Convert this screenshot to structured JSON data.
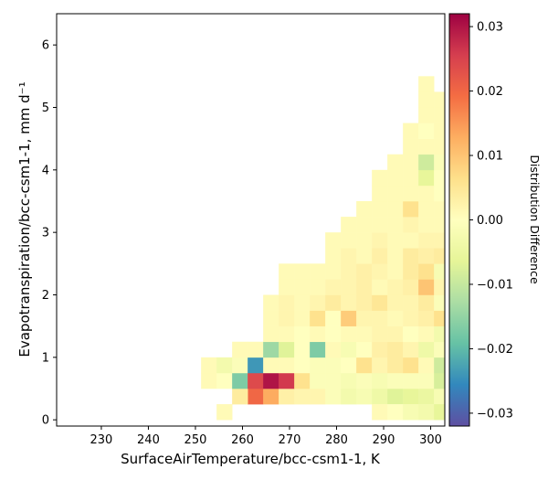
{
  "chart_data": {
    "type": "heatmap",
    "xlabel": "SurfaceAirTemperature/bcc-csm1-1,  K",
    "ylabel": "Evapotranspiration/bcc-csm1-1,  mm d⁻¹",
    "xlim": [
      220.5,
      303
    ],
    "ylim": [
      -0.1,
      6.5
    ],
    "x_ticks": [
      230,
      240,
      250,
      260,
      270,
      280,
      290,
      300
    ],
    "y_ticks": [
      0,
      1,
      2,
      3,
      4,
      5,
      6
    ],
    "bin_width_x": 3.3,
    "bin_height_y": 0.25,
    "colorbar": {
      "label": "Distribution Difference",
      "range": [
        -0.032,
        0.032
      ],
      "ticks": [
        -0.03,
        -0.02,
        -0.01,
        0.0,
        0.01,
        0.02,
        0.03
      ],
      "tick_labels": [
        "−0.03",
        "−0.02",
        "−0.01",
        "0.00",
        "0.01",
        "0.02",
        "0.03"
      ],
      "colormap": "Spectral_r"
    },
    "cells": [
      {
        "x": 254.5,
        "y": 0.0,
        "v": 0.001
      },
      {
        "x": 261.1,
        "y": 0.25,
        "v": 0.02
      },
      {
        "x": 264.4,
        "y": 0.25,
        "v": 0.013
      },
      {
        "x": 267.7,
        "y": 0.25,
        "v": 0.003
      },
      {
        "x": 257.8,
        "y": 0.25,
        "v": 0.004
      },
      {
        "x": 271.0,
        "y": 0.25,
        "v": 0.002
      },
      {
        "x": 274.3,
        "y": 0.25,
        "v": 0.002
      },
      {
        "x": 277.6,
        "y": 0.25,
        "v": -0.001
      },
      {
        "x": 280.9,
        "y": 0.25,
        "v": -0.003
      },
      {
        "x": 284.2,
        "y": 0.25,
        "v": -0.002
      },
      {
        "x": 287.5,
        "y": 0.25,
        "v": -0.004
      },
      {
        "x": 290.8,
        "y": 0.25,
        "v": -0.007
      },
      {
        "x": 294.1,
        "y": 0.25,
        "v": -0.006
      },
      {
        "x": 297.4,
        "y": 0.25,
        "v": -0.005
      },
      {
        "x": 300.7,
        "y": 0.25,
        "v": -0.002
      },
      {
        "x": 287.5,
        "y": 0.0,
        "v": 0.001
      },
      {
        "x": 290.8,
        "y": 0.0,
        "v": 0.0
      },
      {
        "x": 294.1,
        "y": 0.0,
        "v": -0.002
      },
      {
        "x": 297.4,
        "y": 0.0,
        "v": -0.003
      },
      {
        "x": 300.7,
        "y": 0.0,
        "v": -0.006
      },
      {
        "x": 251.2,
        "y": 0.5,
        "v": 0.001
      },
      {
        "x": 254.5,
        "y": 0.5,
        "v": 0.0
      },
      {
        "x": 257.8,
        "y": 0.5,
        "v": -0.017
      },
      {
        "x": 261.1,
        "y": 0.5,
        "v": 0.024
      },
      {
        "x": 264.4,
        "y": 0.5,
        "v": 0.03
      },
      {
        "x": 267.7,
        "y": 0.5,
        "v": 0.026
      },
      {
        "x": 271.0,
        "y": 0.5,
        "v": 0.006
      },
      {
        "x": 274.3,
        "y": 0.5,
        "v": -0.001
      },
      {
        "x": 277.6,
        "y": 0.5,
        "v": -0.001
      },
      {
        "x": 280.9,
        "y": 0.5,
        "v": -0.002
      },
      {
        "x": 284.2,
        "y": 0.5,
        "v": -0.001
      },
      {
        "x": 287.5,
        "y": 0.5,
        "v": -0.002
      },
      {
        "x": 290.8,
        "y": 0.5,
        "v": -0.001
      },
      {
        "x": 294.1,
        "y": 0.5,
        "v": -0.001
      },
      {
        "x": 297.4,
        "y": 0.5,
        "v": -0.001
      },
      {
        "x": 300.7,
        "y": 0.5,
        "v": -0.008
      },
      {
        "x": 251.2,
        "y": 0.75,
        "v": 0.001
      },
      {
        "x": 254.5,
        "y": 0.75,
        "v": -0.003
      },
      {
        "x": 257.8,
        "y": 0.75,
        "v": -0.001
      },
      {
        "x": 261.1,
        "y": 0.75,
        "v": -0.024
      },
      {
        "x": 264.4,
        "y": 0.75,
        "v": 0.001
      },
      {
        "x": 267.7,
        "y": 0.75,
        "v": 0.001
      },
      {
        "x": 271.0,
        "y": 0.75,
        "v": 0.0
      },
      {
        "x": 274.3,
        "y": 0.75,
        "v": -0.001
      },
      {
        "x": 277.6,
        "y": 0.75,
        "v": -0.001
      },
      {
        "x": 280.9,
        "y": 0.75,
        "v": 0.0
      },
      {
        "x": 284.2,
        "y": 0.75,
        "v": 0.006
      },
      {
        "x": 287.5,
        "y": 0.75,
        "v": 0.002
      },
      {
        "x": 290.8,
        "y": 0.75,
        "v": 0.004
      },
      {
        "x": 294.1,
        "y": 0.75,
        "v": 0.006
      },
      {
        "x": 297.4,
        "y": 0.75,
        "v": 0.001
      },
      {
        "x": 300.7,
        "y": 0.75,
        "v": -0.009
      },
      {
        "x": 257.8,
        "y": 1.0,
        "v": 0.001
      },
      {
        "x": 261.1,
        "y": 1.0,
        "v": 0.001
      },
      {
        "x": 264.4,
        "y": 1.0,
        "v": -0.014
      },
      {
        "x": 267.7,
        "y": 1.0,
        "v": -0.007
      },
      {
        "x": 271.0,
        "y": 1.0,
        "v": 0.0
      },
      {
        "x": 274.3,
        "y": 1.0,
        "v": -0.017
      },
      {
        "x": 277.6,
        "y": 1.0,
        "v": 0.001
      },
      {
        "x": 280.9,
        "y": 1.0,
        "v": -0.002
      },
      {
        "x": 284.2,
        "y": 1.0,
        "v": 0.0
      },
      {
        "x": 287.5,
        "y": 1.0,
        "v": 0.003
      },
      {
        "x": 290.8,
        "y": 1.0,
        "v": 0.004
      },
      {
        "x": 294.1,
        "y": 1.0,
        "v": 0.002
      },
      {
        "x": 297.4,
        "y": 1.0,
        "v": -0.004
      },
      {
        "x": 300.7,
        "y": 1.0,
        "v": -0.001
      },
      {
        "x": 264.4,
        "y": 1.25,
        "v": 0.001
      },
      {
        "x": 267.7,
        "y": 1.25,
        "v": 0.001
      },
      {
        "x": 271.0,
        "y": 1.25,
        "v": 0.0
      },
      {
        "x": 274.3,
        "y": 1.25,
        "v": 0.001
      },
      {
        "x": 277.6,
        "y": 1.25,
        "v": 0.0
      },
      {
        "x": 280.9,
        "y": 1.25,
        "v": 0.001
      },
      {
        "x": 284.2,
        "y": 1.25,
        "v": 0.001
      },
      {
        "x": 287.5,
        "y": 1.25,
        "v": 0.002
      },
      {
        "x": 290.8,
        "y": 1.25,
        "v": 0.002
      },
      {
        "x": 294.1,
        "y": 1.25,
        "v": 0.0
      },
      {
        "x": 297.4,
        "y": 1.25,
        "v": 0.001
      },
      {
        "x": 300.7,
        "y": 1.25,
        "v": -0.003
      },
      {
        "x": 264.4,
        "y": 1.5,
        "v": 0.001
      },
      {
        "x": 267.7,
        "y": 1.5,
        "v": 0.002
      },
      {
        "x": 271.0,
        "y": 1.5,
        "v": 0.001
      },
      {
        "x": 274.3,
        "y": 1.5,
        "v": 0.006
      },
      {
        "x": 277.6,
        "y": 1.5,
        "v": 0.0
      },
      {
        "x": 280.9,
        "y": 1.5,
        "v": 0.009
      },
      {
        "x": 284.2,
        "y": 1.5,
        "v": 0.002
      },
      {
        "x": 287.5,
        "y": 1.5,
        "v": 0.002
      },
      {
        "x": 290.8,
        "y": 1.5,
        "v": 0.001
      },
      {
        "x": 294.1,
        "y": 1.5,
        "v": 0.002
      },
      {
        "x": 297.4,
        "y": 1.5,
        "v": 0.003
      },
      {
        "x": 300.7,
        "y": 1.5,
        "v": 0.006
      },
      {
        "x": 264.4,
        "y": 1.75,
        "v": 0.001
      },
      {
        "x": 267.7,
        "y": 1.75,
        "v": 0.002
      },
      {
        "x": 271.0,
        "y": 1.75,
        "v": 0.001
      },
      {
        "x": 274.3,
        "y": 1.75,
        "v": 0.002
      },
      {
        "x": 277.6,
        "y": 1.75,
        "v": 0.004
      },
      {
        "x": 280.9,
        "y": 1.75,
        "v": 0.002
      },
      {
        "x": 284.2,
        "y": 1.75,
        "v": 0.003
      },
      {
        "x": 287.5,
        "y": 1.75,
        "v": 0.005
      },
      {
        "x": 290.8,
        "y": 1.75,
        "v": 0.002
      },
      {
        "x": 294.1,
        "y": 1.75,
        "v": 0.002
      },
      {
        "x": 297.4,
        "y": 1.75,
        "v": 0.004
      },
      {
        "x": 300.7,
        "y": 1.75,
        "v": -0.001
      },
      {
        "x": 267.7,
        "y": 2.0,
        "v": 0.001
      },
      {
        "x": 271.0,
        "y": 2.0,
        "v": 0.001
      },
      {
        "x": 274.3,
        "y": 2.0,
        "v": 0.001
      },
      {
        "x": 277.6,
        "y": 2.0,
        "v": 0.002
      },
      {
        "x": 280.9,
        "y": 2.0,
        "v": 0.002
      },
      {
        "x": 284.2,
        "y": 2.0,
        "v": 0.003
      },
      {
        "x": 287.5,
        "y": 2.0,
        "v": 0.001
      },
      {
        "x": 290.8,
        "y": 2.0,
        "v": 0.002
      },
      {
        "x": 294.1,
        "y": 2.0,
        "v": 0.003
      },
      {
        "x": 297.4,
        "y": 2.0,
        "v": 0.01
      },
      {
        "x": 300.7,
        "y": 2.0,
        "v": 0.002
      },
      {
        "x": 267.7,
        "y": 2.25,
        "v": 0.001
      },
      {
        "x": 271.0,
        "y": 2.25,
        "v": 0.001
      },
      {
        "x": 274.3,
        "y": 2.25,
        "v": 0.001
      },
      {
        "x": 277.6,
        "y": 2.25,
        "v": 0.001
      },
      {
        "x": 280.9,
        "y": 2.25,
        "v": 0.002
      },
      {
        "x": 284.2,
        "y": 2.25,
        "v": 0.003
      },
      {
        "x": 287.5,
        "y": 2.25,
        "v": 0.002
      },
      {
        "x": 290.8,
        "y": 2.25,
        "v": 0.001
      },
      {
        "x": 294.1,
        "y": 2.25,
        "v": 0.004
      },
      {
        "x": 297.4,
        "y": 2.25,
        "v": 0.006
      },
      {
        "x": 300.7,
        "y": 2.25,
        "v": -0.002
      },
      {
        "x": 277.6,
        "y": 2.5,
        "v": 0.001
      },
      {
        "x": 280.9,
        "y": 2.5,
        "v": 0.002
      },
      {
        "x": 284.2,
        "y": 2.5,
        "v": 0.001
      },
      {
        "x": 287.5,
        "y": 2.5,
        "v": 0.003
      },
      {
        "x": 290.8,
        "y": 2.5,
        "v": 0.001
      },
      {
        "x": 294.1,
        "y": 2.5,
        "v": 0.004
      },
      {
        "x": 297.4,
        "y": 2.5,
        "v": 0.003
      },
      {
        "x": 300.7,
        "y": 2.5,
        "v": 0.004
      },
      {
        "x": 277.6,
        "y": 2.75,
        "v": 0.001
      },
      {
        "x": 280.9,
        "y": 2.75,
        "v": 0.001
      },
      {
        "x": 284.2,
        "y": 2.75,
        "v": 0.001
      },
      {
        "x": 287.5,
        "y": 2.75,
        "v": 0.002
      },
      {
        "x": 290.8,
        "y": 2.75,
        "v": 0.001
      },
      {
        "x": 294.1,
        "y": 2.75,
        "v": 0.001
      },
      {
        "x": 297.4,
        "y": 2.75,
        "v": 0.002
      },
      {
        "x": 300.7,
        "y": 2.75,
        "v": 0.002
      },
      {
        "x": 280.9,
        "y": 3.0,
        "v": 0.001
      },
      {
        "x": 284.2,
        "y": 3.0,
        "v": 0.001
      },
      {
        "x": 287.5,
        "y": 3.0,
        "v": 0.001
      },
      {
        "x": 290.8,
        "y": 3.0,
        "v": 0.001
      },
      {
        "x": 294.1,
        "y": 3.0,
        "v": 0.002
      },
      {
        "x": 297.4,
        "y": 3.0,
        "v": 0.001
      },
      {
        "x": 300.7,
        "y": 3.0,
        "v": 0.001
      },
      {
        "x": 284.2,
        "y": 3.25,
        "v": 0.001
      },
      {
        "x": 287.5,
        "y": 3.25,
        "v": 0.001
      },
      {
        "x": 290.8,
        "y": 3.25,
        "v": 0.001
      },
      {
        "x": 294.1,
        "y": 3.25,
        "v": 0.006
      },
      {
        "x": 297.4,
        "y": 3.25,
        "v": 0.001
      },
      {
        "x": 300.7,
        "y": 3.25,
        "v": 0.001
      },
      {
        "x": 287.5,
        "y": 3.5,
        "v": 0.001
      },
      {
        "x": 290.8,
        "y": 3.5,
        "v": 0.001
      },
      {
        "x": 294.1,
        "y": 3.5,
        "v": 0.001
      },
      {
        "x": 297.4,
        "y": 3.5,
        "v": 0.001
      },
      {
        "x": 300.7,
        "y": 3.5,
        "v": 0.0
      },
      {
        "x": 287.5,
        "y": 3.75,
        "v": 0.001
      },
      {
        "x": 290.8,
        "y": 3.75,
        "v": 0.001
      },
      {
        "x": 294.1,
        "y": 3.75,
        "v": 0.001
      },
      {
        "x": 297.4,
        "y": 3.75,
        "v": -0.006
      },
      {
        "x": 300.7,
        "y": 3.75,
        "v": 0.0
      },
      {
        "x": 290.8,
        "y": 4.0,
        "v": 0.001
      },
      {
        "x": 294.1,
        "y": 4.0,
        "v": 0.001
      },
      {
        "x": 297.4,
        "y": 4.0,
        "v": -0.009
      },
      {
        "x": 300.7,
        "y": 4.0,
        "v": -0.001
      },
      {
        "x": 294.1,
        "y": 4.25,
        "v": 0.001
      },
      {
        "x": 297.4,
        "y": 4.25,
        "v": 0.001
      },
      {
        "x": 300.7,
        "y": 4.25,
        "v": 0.001
      },
      {
        "x": 294.1,
        "y": 4.5,
        "v": 0.001
      },
      {
        "x": 297.4,
        "y": 4.5,
        "v": 0.0
      },
      {
        "x": 300.7,
        "y": 4.5,
        "v": 0.001
      },
      {
        "x": 297.4,
        "y": 4.75,
        "v": 0.001
      },
      {
        "x": 300.7,
        "y": 4.75,
        "v": 0.001
      },
      {
        "x": 297.4,
        "y": 5.0,
        "v": 0.001
      },
      {
        "x": 300.7,
        "y": 5.0,
        "v": 0.001
      },
      {
        "x": 297.4,
        "y": 5.25,
        "v": 0.001
      }
    ]
  }
}
